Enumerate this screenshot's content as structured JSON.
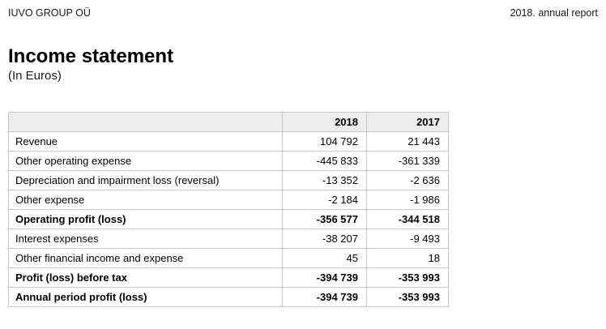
{
  "page": {
    "company": "IUVO GROUP OÜ",
    "report_label": "2018. annual report",
    "title": "Income statement",
    "subtitle": "(In Euros)"
  },
  "table": {
    "columns": [
      "",
      "2018",
      "2017"
    ],
    "rows": [
      {
        "label": "Revenue",
        "y2018": "104 792",
        "y2017": "21 443"
      },
      {
        "label": "Other operating expense",
        "y2018": "-445 833",
        "y2017": "-361 339"
      },
      {
        "label": "Depreciation and impairment loss (reversal)",
        "y2018": "-13 352",
        "y2017": "-2 636"
      },
      {
        "label": "Other expense",
        "y2018": "-2 184",
        "y2017": "-1 986"
      },
      {
        "label": "Operating profit (loss)",
        "y2018": "-356 577",
        "y2017": "-344 518"
      },
      {
        "label": "Interest expenses",
        "y2018": "-38 207",
        "y2017": "-9 493"
      },
      {
        "label": "Other financial income and expense",
        "y2018": "45",
        "y2017": "18"
      },
      {
        "label": "Profit (loss) before tax",
        "y2018": "-394 739",
        "y2017": "-353 993"
      },
      {
        "label": "Annual period profit (loss)",
        "y2018": "-394 739",
        "y2017": "-353 993"
      }
    ]
  }
}
